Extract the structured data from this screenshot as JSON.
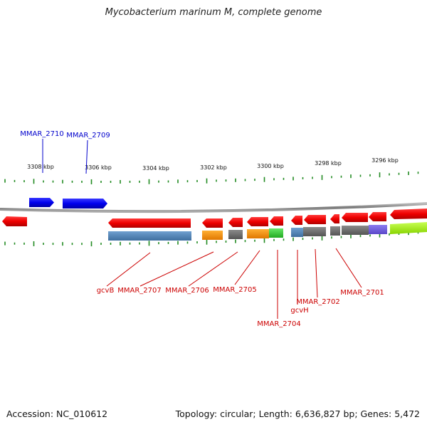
{
  "title": "Mycobacterium marinum M, complete genome",
  "footer": {
    "accession": "Accession: NC_010612",
    "summary": "Topology: circular; Length: 6,636,827 bp; Genes: 5,472"
  },
  "colors": {
    "forward_strand": "#0000ff",
    "reverse_strand": "#ee0000",
    "backbone": "#808080",
    "tick": "#228b22",
    "label_forward": "#0000cc",
    "label_reverse": "#cc0000"
  },
  "ruler": {
    "ticks": [
      {
        "label": "3308 kbp"
      },
      {
        "label": "3306 kbp"
      },
      {
        "label": "3304 kbp"
      },
      {
        "label": "3302 kbp"
      },
      {
        "label": "3300 kbp"
      },
      {
        "label": "3298 kbp"
      },
      {
        "label": "3296 kbp"
      }
    ]
  },
  "gene_labels": {
    "forward": [
      {
        "text": "MMAR_2710"
      },
      {
        "text": "MMAR_2709"
      }
    ],
    "reverse": [
      {
        "text": "gcvB"
      },
      {
        "text": "MMAR_2707"
      },
      {
        "text": "MMAR_2706"
      },
      {
        "text": "MMAR_2705"
      },
      {
        "text": "MMAR_2704"
      },
      {
        "text": "gcvH"
      },
      {
        "text": "MMAR_2702"
      },
      {
        "text": "MMAR_2701"
      }
    ]
  }
}
